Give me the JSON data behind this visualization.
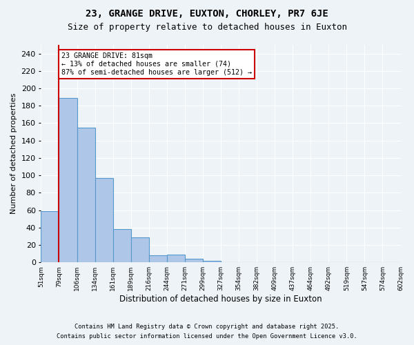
{
  "title1": "23, GRANGE DRIVE, EUXTON, CHORLEY, PR7 6JE",
  "title2": "Size of property relative to detached houses in Euxton",
  "xlabel": "Distribution of detached houses by size in Euxton",
  "ylabel": "Number of detached properties",
  "bar_values": [
    59,
    189,
    155,
    97,
    38,
    29,
    8,
    9,
    4,
    2,
    0,
    0,
    0,
    0,
    0,
    0,
    0,
    0,
    0,
    0
  ],
  "bin_labels": [
    "51sqm",
    "79sqm",
    "106sqm",
    "134sqm",
    "161sqm",
    "189sqm",
    "216sqm",
    "244sqm",
    "271sqm",
    "299sqm",
    "327sqm",
    "354sqm",
    "382sqm",
    "409sqm",
    "437sqm",
    "464sqm",
    "492sqm",
    "519sqm",
    "547sqm",
    "574sqm",
    "602sqm"
  ],
  "bar_color": "#aec6e8",
  "bar_edge_color": "#5599cc",
  "red_line_x": 1,
  "annotation_text": "23 GRANGE DRIVE: 81sqm\n← 13% of detached houses are smaller (74)\n87% of semi-detached houses are larger (512) →",
  "annotation_box_color": "#ffffff",
  "annotation_box_edge": "#cc0000",
  "ylim": [
    0,
    250
  ],
  "yticks": [
    0,
    20,
    40,
    60,
    80,
    100,
    120,
    140,
    160,
    180,
    200,
    220,
    240
  ],
  "footnote1": "Contains HM Land Registry data © Crown copyright and database right 2025.",
  "footnote2": "Contains public sector information licensed under the Open Government Licence v3.0.",
  "bg_color": "#eef3f8",
  "grid_color": "#ffffff",
  "title1_fontsize": 10,
  "title2_fontsize": 9,
  "red_line_color": "#cc0000"
}
